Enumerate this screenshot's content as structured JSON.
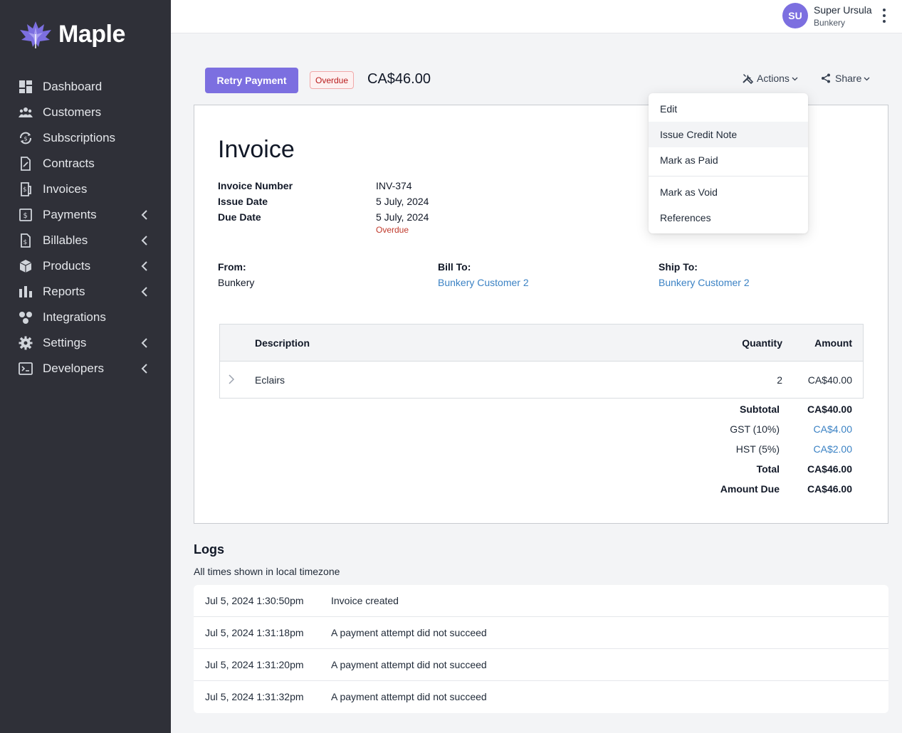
{
  "brand": {
    "name": "Maple",
    "accent": "#7c6fe0"
  },
  "sidebar": {
    "items": [
      {
        "label": "Dashboard",
        "icon": "dashboard-icon",
        "has_chevron": false
      },
      {
        "label": "Customers",
        "icon": "customers-icon",
        "has_chevron": false
      },
      {
        "label": "Subscriptions",
        "icon": "subscriptions-icon",
        "has_chevron": false
      },
      {
        "label": "Contracts",
        "icon": "contracts-icon",
        "has_chevron": false
      },
      {
        "label": "Invoices",
        "icon": "invoices-icon",
        "has_chevron": false
      },
      {
        "label": "Payments",
        "icon": "payments-icon",
        "has_chevron": true
      },
      {
        "label": "Billables",
        "icon": "billables-icon",
        "has_chevron": true
      },
      {
        "label": "Products",
        "icon": "products-icon",
        "has_chevron": true
      },
      {
        "label": "Reports",
        "icon": "reports-icon",
        "has_chevron": true
      },
      {
        "label": "Integrations",
        "icon": "integrations-icon",
        "has_chevron": false
      },
      {
        "label": "Settings",
        "icon": "settings-icon",
        "has_chevron": true
      },
      {
        "label": "Developers",
        "icon": "developers-icon",
        "has_chevron": true
      }
    ]
  },
  "user": {
    "initials": "SU",
    "name": "Super Ursula",
    "org": "Bunkery"
  },
  "header": {
    "retry_label": "Retry Payment",
    "status_badge": "Overdue",
    "amount": "CA$46.00",
    "actions_label": "Actions",
    "share_label": "Share"
  },
  "actions_menu": {
    "items": [
      "Edit",
      "Issue Credit Note",
      "Mark as Paid",
      "Mark as Void",
      "References"
    ],
    "hovered": "Issue Credit Note"
  },
  "invoice": {
    "title": "Invoice",
    "meta": {
      "number_label": "Invoice Number",
      "number": "INV-374",
      "issue_label": "Issue Date",
      "issue": "5 July, 2024",
      "due_label": "Due Date",
      "due": "5 July, 2024",
      "due_status": "Overdue"
    },
    "from": {
      "label": "From:",
      "value": "Bunkery"
    },
    "bill_to": {
      "label": "Bill To:",
      "value": "Bunkery Customer 2"
    },
    "ship_to": {
      "label": "Ship To:",
      "value": "Bunkery Customer 2"
    },
    "table": {
      "headers": {
        "description": "Description",
        "quantity": "Quantity",
        "amount": "Amount"
      },
      "rows": [
        {
          "description": "Eclairs",
          "quantity": "2",
          "amount": "CA$40.00"
        }
      ]
    },
    "totals": {
      "subtotal_label": "Subtotal",
      "subtotal": "CA$40.00",
      "gst_label": "GST (10%)",
      "gst": "CA$4.00",
      "hst_label": "HST (5%)",
      "hst": "CA$2.00",
      "total_label": "Total",
      "total": "CA$46.00",
      "due_label": "Amount Due",
      "due": "CA$46.00"
    }
  },
  "logs": {
    "title": "Logs",
    "subtitle": "All times shown in local timezone",
    "entries": [
      {
        "time": "Jul 5, 2024 1:30:50pm",
        "message": "Invoice created"
      },
      {
        "time": "Jul 5, 2024 1:31:18pm",
        "message": "A payment attempt did not succeed"
      },
      {
        "time": "Jul 5, 2024 1:31:20pm",
        "message": "A payment attempt did not succeed"
      },
      {
        "time": "Jul 5, 2024 1:31:32pm",
        "message": "A payment attempt did not succeed"
      }
    ]
  }
}
